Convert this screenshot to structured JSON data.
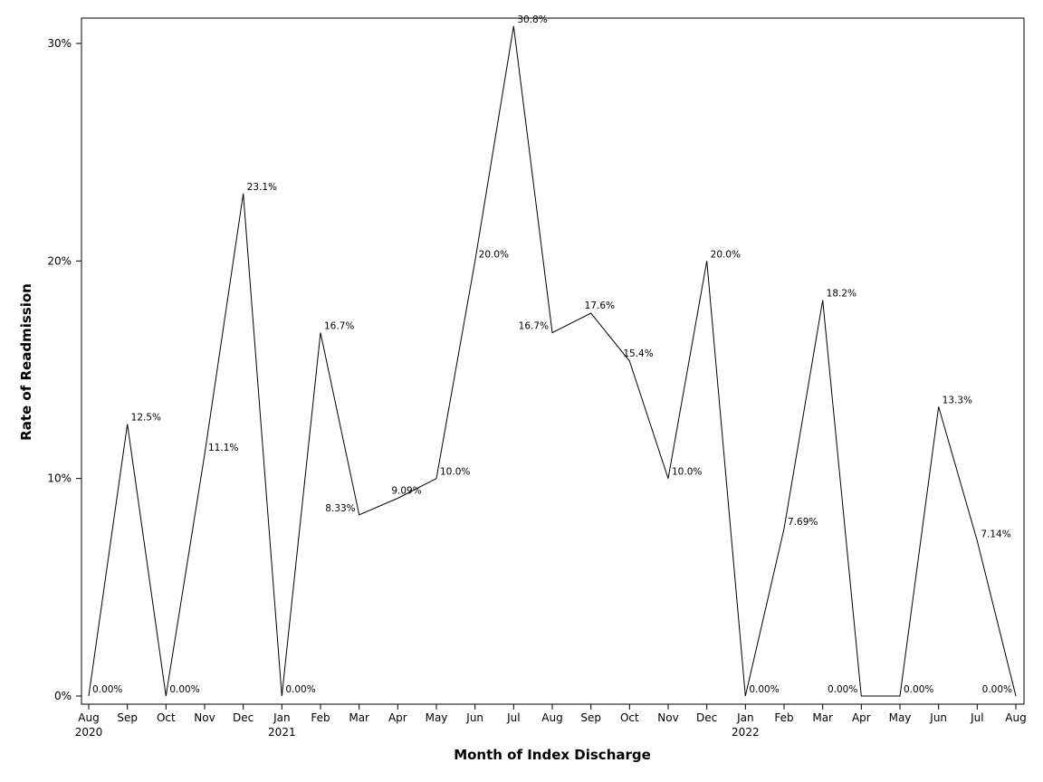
{
  "chart_data": {
    "type": "line",
    "xlabel": "Month of Index Discharge",
    "ylabel": "Rate of Readmission",
    "ylim": [
      0,
      31
    ],
    "yticks": [
      {
        "value": 0,
        "label": "0%"
      },
      {
        "value": 10,
        "label": "10%"
      },
      {
        "value": 20,
        "label": "20%"
      },
      {
        "value": 30,
        "label": "30%"
      }
    ],
    "grid": false,
    "legend": "none",
    "line_color": "#000000",
    "x": [
      {
        "month": "Aug",
        "year": "2020"
      },
      {
        "month": "Sep",
        "year": ""
      },
      {
        "month": "Oct",
        "year": ""
      },
      {
        "month": "Nov",
        "year": ""
      },
      {
        "month": "Dec",
        "year": ""
      },
      {
        "month": "Jan",
        "year": "2021"
      },
      {
        "month": "Feb",
        "year": ""
      },
      {
        "month": "Mar",
        "year": ""
      },
      {
        "month": "Apr",
        "year": ""
      },
      {
        "month": "May",
        "year": ""
      },
      {
        "month": "Jun",
        "year": ""
      },
      {
        "month": "Jul",
        "year": ""
      },
      {
        "month": "Aug",
        "year": ""
      },
      {
        "month": "Sep",
        "year": ""
      },
      {
        "month": "Oct",
        "year": ""
      },
      {
        "month": "Nov",
        "year": ""
      },
      {
        "month": "Dec",
        "year": ""
      },
      {
        "month": "Jan",
        "year": "2022"
      },
      {
        "month": "Feb",
        "year": ""
      },
      {
        "month": "Mar",
        "year": ""
      },
      {
        "month": "Apr",
        "year": ""
      },
      {
        "month": "May",
        "year": ""
      },
      {
        "month": "Jun",
        "year": ""
      },
      {
        "month": "Jul",
        "year": ""
      },
      {
        "month": "Aug",
        "year": ""
      }
    ],
    "values": [
      0,
      12.5,
      0,
      11.1,
      23.1,
      0,
      16.7,
      8.33,
      9.09,
      10.0,
      20.0,
      30.8,
      16.7,
      17.6,
      15.4,
      10.0,
      20.0,
      0,
      7.69,
      18.2,
      0,
      0,
      13.3,
      7.14,
      0
    ],
    "labels": [
      "0.00%",
      "12.5%",
      "0.00%",
      "11.1%",
      "23.1%",
      "0.00%",
      "16.7%",
      "8.33%",
      "9.09%",
      "10.0%",
      "20.0%",
      "30.8%",
      "16.7%",
      "17.6%",
      "15.4%",
      "10.0%",
      "20.0%",
      "0.00%",
      "7.69%",
      "18.2%",
      "0.00%",
      "0.00%",
      "13.3%",
      "7.14%",
      "0.00%"
    ],
    "label_side": [
      "right",
      "right",
      "right",
      "right",
      "right",
      "right",
      "right",
      "left",
      "above",
      "right",
      "right",
      "right",
      "left",
      "above",
      "above",
      "right",
      "right",
      "right",
      "right",
      "right",
      "left",
      "right",
      "right",
      "right",
      "left"
    ]
  }
}
